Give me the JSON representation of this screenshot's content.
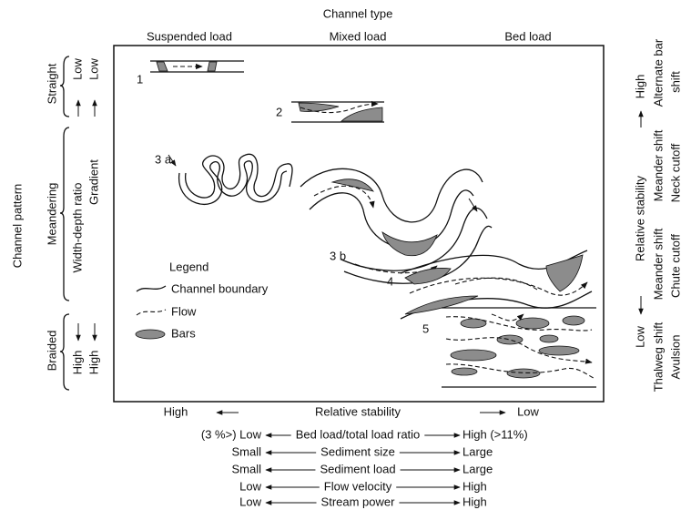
{
  "header": {
    "title": "Channel type",
    "columns": [
      "Suspended load",
      "Mixed load",
      "Bed load"
    ]
  },
  "pattern": {
    "label": "Channel pattern",
    "rows": [
      "Straight",
      "Meandering",
      "Braided"
    ]
  },
  "left_scales": {
    "top": [
      "Low",
      "Low"
    ],
    "labels": [
      "Width-depth ratio",
      "Gradient"
    ],
    "bottom": [
      "High",
      "High"
    ]
  },
  "channels": [
    "1",
    "2",
    "3 a",
    "3 b",
    "4",
    "5"
  ],
  "legend": {
    "title": "Legend",
    "items": [
      "Channel boundary",
      "Flow",
      "Bars"
    ]
  },
  "bottom_scales": [
    [
      "High",
      "Relative stability",
      "Low"
    ],
    [
      "(3 %>) Low",
      "Bed load/total load ratio",
      "High (>11%)"
    ],
    [
      "Small",
      "Sediment size",
      "Large"
    ],
    [
      "Small",
      "Sediment load",
      "Large"
    ],
    [
      "Low",
      "Flow velocity",
      "High"
    ],
    [
      "Low",
      "Stream power",
      "High"
    ]
  ],
  "right_scale": {
    "high": "High",
    "label": "Relative stability",
    "low": "Low",
    "column1": [
      "Alternate bar",
      "Meander shift",
      "Meander shift",
      "Thalweg shift"
    ],
    "column2": [
      "shift",
      "Neck cutoff",
      "Chute cutoff",
      "Avulsion"
    ]
  }
}
